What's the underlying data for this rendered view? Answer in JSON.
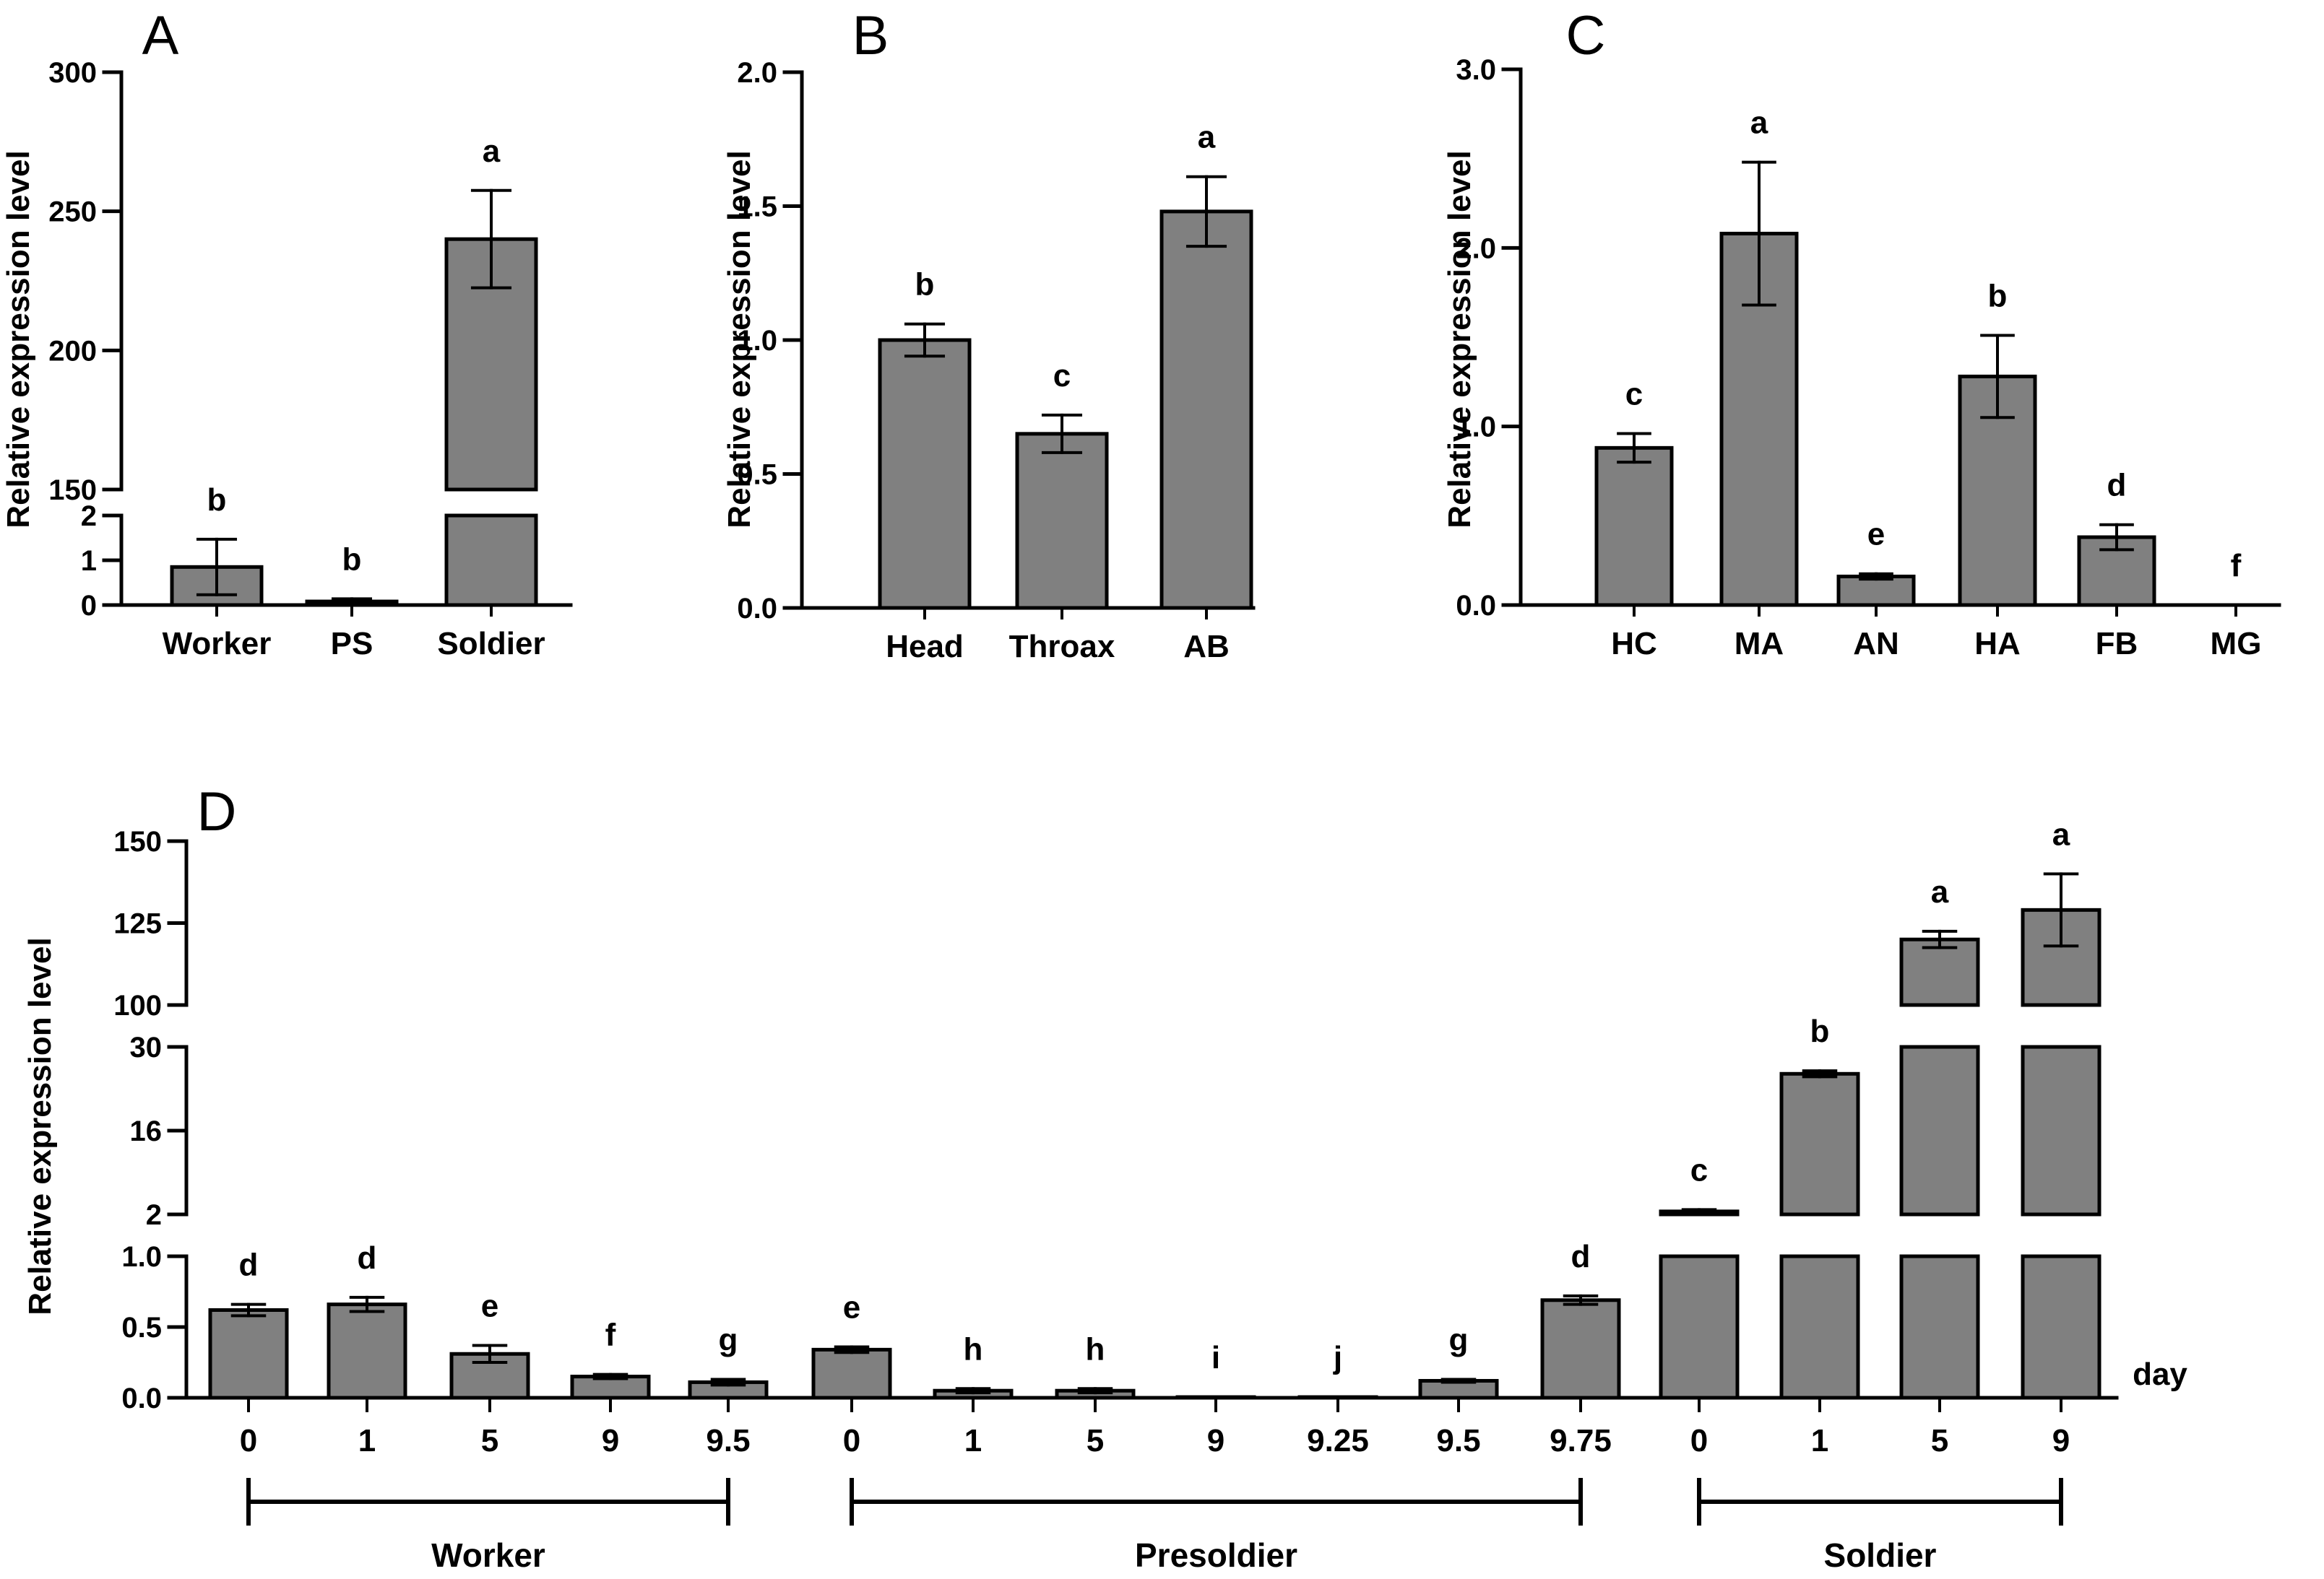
{
  "chart_data": [
    {
      "panel": "A",
      "type": "bar",
      "ylabel": "Relative expression level",
      "broken_axis": {
        "lower_range": [
          0,
          2
        ],
        "upper_range": [
          150,
          300
        ]
      },
      "lower_ticks": [
        "0",
        "1",
        "2"
      ],
      "upper_ticks": [
        "150",
        "200",
        "250",
        "300"
      ],
      "categories": [
        "Worker",
        "PS",
        "Soldier"
      ],
      "values": [
        0.85,
        0.08,
        240
      ],
      "errors": [
        0.62,
        0.06,
        17.5
      ],
      "letters": [
        "b",
        "b",
        "a"
      ],
      "bar_color": "#808080"
    },
    {
      "panel": "B",
      "type": "bar",
      "ylabel": "Relative expression level",
      "ylim": [
        0,
        2.0
      ],
      "ticks": [
        "0.0",
        "0.5",
        "1.0",
        "1.5",
        "2.0"
      ],
      "categories": [
        "Head",
        "Throax",
        "AB"
      ],
      "values": [
        1.0,
        0.65,
        1.48
      ],
      "errors": [
        0.06,
        0.07,
        0.13
      ],
      "letters": [
        "b",
        "c",
        "a"
      ],
      "bar_color": "#808080"
    },
    {
      "panel": "C",
      "type": "bar",
      "ylabel": "Relative expression level",
      "ylim": [
        0,
        3.0
      ],
      "ticks": [
        "0.0",
        "1.0",
        "2.0",
        "3.0"
      ],
      "categories": [
        "HC",
        "MA",
        "AN",
        "HA",
        "FB",
        "MG"
      ],
      "values": [
        0.88,
        2.08,
        0.16,
        1.28,
        0.38,
        0.0
      ],
      "errors": [
        0.08,
        0.4,
        0.015,
        0.23,
        0.07,
        0.0
      ],
      "letters": [
        "c",
        "a",
        "e",
        "b",
        "d",
        "f"
      ],
      "bar_color": "#808080"
    },
    {
      "panel": "D",
      "type": "bar",
      "ylabel": "Relative expression level",
      "xlabel": "day",
      "broken_axis": {
        "lower_range": [
          0,
          1.0
        ],
        "middle_range": [
          2,
          30
        ],
        "upper_range": [
          100,
          150
        ]
      },
      "lower_ticks": [
        "0.0",
        "0.5",
        "1.0"
      ],
      "middle_ticks": [
        "2",
        "16",
        "30"
      ],
      "upper_ticks": [
        "100",
        "125",
        "150"
      ],
      "categories": [
        "0",
        "1",
        "5",
        "9",
        "9.5",
        "0",
        "1",
        "5",
        "9",
        "9.25",
        "9.5",
        "9.75",
        "0",
        "1",
        "5",
        "9"
      ],
      "groups": [
        {
          "name": "Worker",
          "start": 0,
          "end": 4
        },
        {
          "name": "Presoldier",
          "start": 5,
          "end": 11
        },
        {
          "name": "Soldier",
          "start": 12,
          "end": 15
        }
      ],
      "values": [
        0.62,
        0.66,
        0.31,
        0.15,
        0.11,
        0.34,
        0.05,
        0.05,
        0.005,
        0.005,
        0.12,
        0.69,
        2.5,
        25.5,
        120,
        129
      ],
      "errors": [
        0.04,
        0.05,
        0.06,
        0.015,
        0.02,
        0.02,
        0.015,
        0.015,
        0.0,
        0.0,
        0.01,
        0.03,
        0.3,
        0.5,
        2.5,
        11
      ],
      "letters": [
        "d",
        "d",
        "e",
        "f",
        "g",
        "e",
        "h",
        "h",
        "i",
        "j",
        "g",
        "d",
        "c",
        "b",
        "a",
        "a"
      ],
      "bar_color": "#808080"
    }
  ]
}
